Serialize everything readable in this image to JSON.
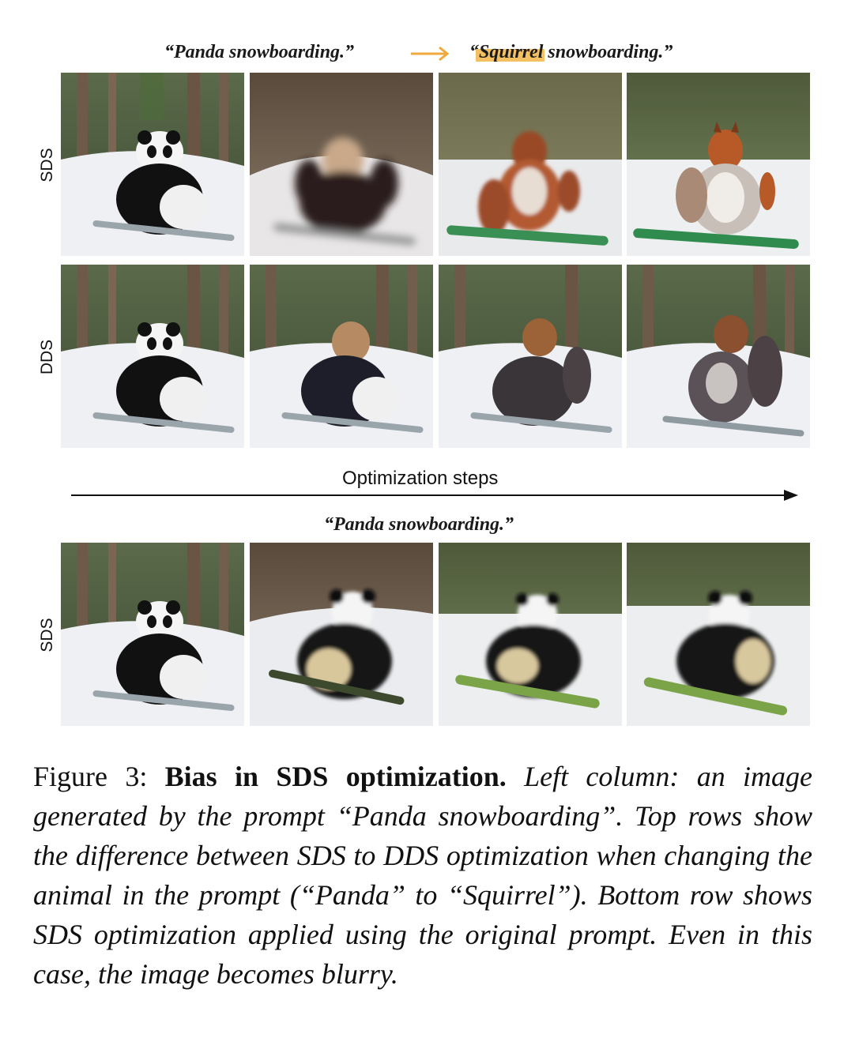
{
  "prompts": {
    "source": "“Panda snowboarding.”",
    "target_prefix": "“",
    "target_word": "Squirrel",
    "target_suffix": " snowboarding.”",
    "bottom": "“Panda snowboarding.”"
  },
  "row_labels": {
    "top": "SDS",
    "middle": "DDS",
    "bottom": "SDS"
  },
  "axis": {
    "label": "Optimization steps"
  },
  "colors": {
    "highlight": "#f3c062",
    "arrow": "#f0a93c"
  },
  "caption": {
    "label": "Figure 3:",
    "title": "Bias in SDS optimization.",
    "body": "Left column: an image generated by the prompt “Panda snowboarding”. Top rows show the difference between SDS to DDS optimization when changing the animal in the prompt (“Panda” to “Squirrel”). Bottom row shows SDS optimization applied using the original prompt. Even in this case, the image becomes blurry."
  }
}
